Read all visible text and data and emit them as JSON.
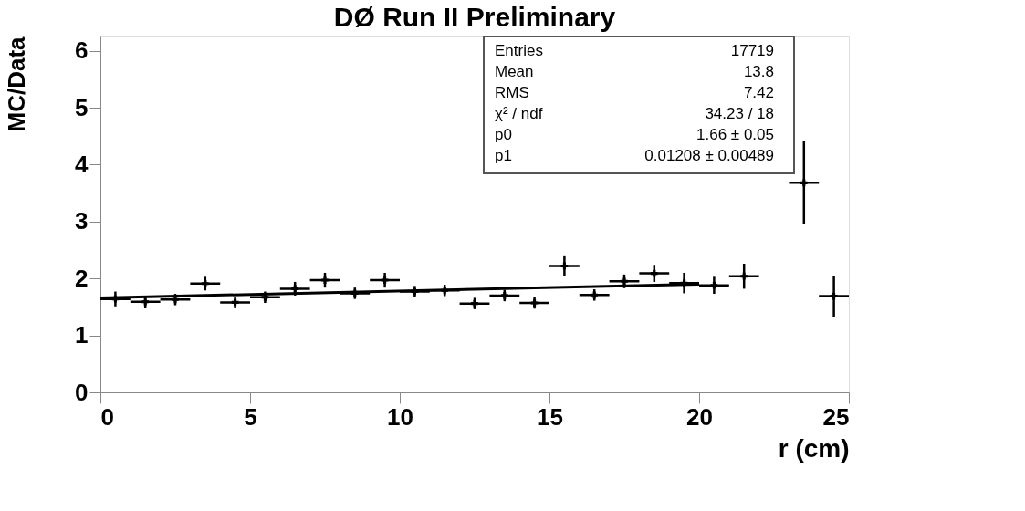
{
  "chart_data": {
    "type": "scatter",
    "title": "DØ Run II Preliminary",
    "xlabel": "r (cm)",
    "ylabel": "MC/Data",
    "x": [
      0.5,
      1.5,
      2.5,
      3.5,
      4.5,
      5.5,
      6.5,
      7.5,
      8.5,
      9.5,
      10.5,
      11.5,
      12.5,
      13.5,
      14.5,
      15.5,
      16.5,
      17.5,
      18.5,
      19.5,
      20.5,
      21.5,
      23.5,
      24.5
    ],
    "series": [
      {
        "type": "line",
        "color": "#000000",
        "x": [
          0,
          20
        ],
        "values": [
          1.66,
          1.9
        ]
      },
      {
        "color": "#000000",
        "marker": "cross",
        "values": [
          1.64,
          1.59,
          1.63,
          1.91,
          1.58,
          1.67,
          1.82,
          1.97,
          1.74,
          1.97,
          1.77,
          1.79,
          1.56,
          1.7,
          1.57,
          2.22,
          1.71,
          1.95,
          2.09,
          1.92,
          1.88,
          2.04,
          3.68,
          1.69
        ],
        "xerrors": [
          0.5,
          0.5,
          0.5,
          0.5,
          0.5,
          0.5,
          0.5,
          0.5,
          0.5,
          0.5,
          0.5,
          0.5,
          0.5,
          0.5,
          0.5,
          0.5,
          0.5,
          0.5,
          0.5,
          0.5,
          0.5,
          0.5,
          0.5,
          0.5
        ],
        "errors": [
          0.13,
          0.1,
          0.1,
          0.12,
          0.1,
          0.1,
          0.12,
          0.13,
          0.1,
          0.13,
          0.1,
          0.1,
          0.1,
          0.1,
          0.1,
          0.17,
          0.1,
          0.12,
          0.15,
          0.18,
          0.15,
          0.22,
          0.73,
          0.36
        ]
      }
    ],
    "xlim": [
      0,
      25
    ],
    "xticks": [
      0,
      5,
      10,
      15,
      20,
      25
    ],
    "ylim": [
      0,
      6.25
    ],
    "yticks": [
      0,
      1,
      2,
      3,
      4,
      5,
      6
    ],
    "grid": false,
    "line_style": "solid",
    "annotations": [
      "Entries",
      "17719",
      "Mean",
      "13.8",
      "RMS",
      "7.42",
      "χ² / ndf",
      "34.23 / 18",
      "p0",
      "1.66 ± 0.05",
      "p1",
      "0.01208 ± 0.00489"
    ]
  }
}
